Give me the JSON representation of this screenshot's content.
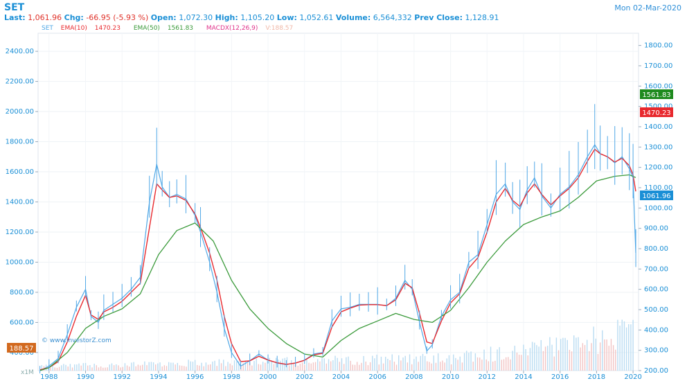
{
  "header": {
    "symbol": "SET",
    "date": "Mon 02-Mar-2020",
    "last_label": "Last:",
    "last": "1,061.96",
    "chg_label": "Chg:",
    "chg": "-66.95 (-5.93 %)",
    "open_label": "Open:",
    "open": "1,072.30",
    "high_label": "High:",
    "high": "1,105.20",
    "low_label": "Low:",
    "low": "1,052.61",
    "volume_label": "Volume:",
    "volume": "6,564,332",
    "prev_label": "Prev Close:",
    "prev": "1,128.91"
  },
  "legend": {
    "set": "SET",
    "ema10": "EMA(10)",
    "ema10_val": "1470.23",
    "ema50": "EMA(50)",
    "ema50_val": "1561.83",
    "macdx": "MACDX(12,26,9)",
    "v": "V:188.57"
  },
  "watermark": "© www.investorZ.com",
  "badges": {
    "left_value": "188.57",
    "ema50_value": "1561.83",
    "ema10_value": "1470.23",
    "last_value": "1061.96",
    "volume_unit": "x1M"
  },
  "colors": {
    "price": "#4fa7e6",
    "ema10": "#e8282d",
    "ema50": "#3a9a3a",
    "volume_up": "#b9dcf2",
    "volume_down": "#f2c4c4",
    "badge_left": "#d2691e",
    "badge_ema50": "#1e8a1e",
    "badge_ema10": "#e8282d",
    "badge_last": "#1a8fd6",
    "axis_text": "#1a8fd6"
  },
  "chart_data": {
    "type": "line",
    "title": "SET",
    "left_axis": {
      "ylim": [
        280,
        2520
      ],
      "ticks": [
        400,
        600,
        800,
        1000,
        1200,
        1400,
        1600,
        1800,
        2000,
        2200,
        2400
      ],
      "tick_labels": [
        "400.00",
        "600.00",
        "800.00",
        "1000.00",
        "1200.00",
        "1400.00",
        "1600.00",
        "1800.00",
        "2000.00",
        "2200.00",
        "2400.00"
      ]
    },
    "right_axis": {
      "ylim": [
        200,
        1860
      ],
      "ticks": [
        200,
        300,
        400,
        500,
        600,
        700,
        800,
        900,
        1000,
        1100,
        1200,
        1300,
        1400,
        1500,
        1600,
        1700,
        1800
      ],
      "tick_labels": [
        "200.00",
        "300.00",
        "400.00",
        "500.00",
        "600.00",
        "700.00",
        "800.00",
        "900.00",
        "1000.00",
        "1100.00",
        "1200.00",
        "1300.00",
        "1400.00",
        "1500.00",
        "1600.00",
        "1700.00",
        "1800.00"
      ]
    },
    "x_ticks": [
      "1988",
      "1990",
      "1992",
      "1994",
      "1996",
      "1998",
      "2000",
      "2002",
      "2004",
      "2006",
      "2008",
      "2010",
      "2012",
      "2014",
      "2016",
      "2018",
      "2020"
    ],
    "x_tick_values": [
      1988,
      1990,
      1992,
      1994,
      1996,
      1998,
      2000,
      2002,
      2004,
      2006,
      2008,
      2010,
      2012,
      2014,
      2016,
      2018,
      2020
    ],
    "grid": true,
    "series": [
      {
        "name": "SET",
        "x": [
          1987.5,
          1988,
          1988.5,
          1989,
          1989.5,
          1990,
          1990.3,
          1990.7,
          1991,
          1991.5,
          1992,
          1992.5,
          1993,
          1993.5,
          1993.9,
          1994.2,
          1994.6,
          1995,
          1995.5,
          1996,
          1996.3,
          1996.8,
          1997.2,
          1997.6,
          1998,
          1998.5,
          1999,
          1999.5,
          2000,
          2000.5,
          2001,
          2001.5,
          2002,
          2002.5,
          2003,
          2003.5,
          2004,
          2004.5,
          2005,
          2005.5,
          2006,
          2006.5,
          2007,
          2007.5,
          2007.9,
          2008.3,
          2008.7,
          2009,
          2009.5,
          2010,
          2010.5,
          2011,
          2011.5,
          2012,
          2012.5,
          2013,
          2013.4,
          2013.8,
          2014.2,
          2014.6,
          2015,
          2015.5,
          2016,
          2016.5,
          2017,
          2017.5,
          2017.9,
          2018.2,
          2018.6,
          2019,
          2019.4,
          2019.8,
          2020.0,
          2020.15
        ],
        "values": [
          280,
          310,
          360,
          520,
          700,
          820,
          640,
          600,
          680,
          720,
          760,
          820,
          900,
          1400,
          1650,
          1500,
          1430,
          1450,
          1420,
          1310,
          1200,
          1000,
          800,
          560,
          400,
          310,
          345,
          390,
          350,
          330,
          320,
          330,
          350,
          390,
          400,
          610,
          690,
          700,
          720,
          720,
          720,
          710,
          760,
          880,
          820,
          600,
          410,
          450,
          640,
          750,
          800,
          1000,
          1050,
          1250,
          1450,
          1520,
          1400,
          1350,
          1480,
          1560,
          1440,
          1360,
          1450,
          1500,
          1580,
          1700,
          1780,
          1720,
          1700,
          1660,
          1700,
          1620,
          1560,
          1062
        ]
      },
      {
        "name": "EMA(10)",
        "x": [
          1987.5,
          1988,
          1988.5,
          1989,
          1989.5,
          1990,
          1990.3,
          1990.7,
          1991,
          1991.5,
          1992,
          1992.5,
          1993,
          1993.5,
          1993.9,
          1994.2,
          1994.6,
          1995,
          1995.5,
          1996,
          1996.3,
          1996.8,
          1997.2,
          1997.6,
          1998,
          1998.5,
          1999,
          1999.5,
          2000,
          2000.5,
          2001,
          2001.5,
          2002,
          2002.5,
          2003,
          2003.5,
          2004,
          2004.5,
          2005,
          2005.5,
          2006,
          2006.5,
          2007,
          2007.5,
          2007.9,
          2008.3,
          2008.7,
          2009,
          2009.5,
          2010,
          2010.5,
          2011,
          2011.5,
          2012,
          2012.5,
          2013,
          2013.4,
          2013.8,
          2014.2,
          2014.6,
          2015,
          2015.5,
          2016,
          2016.5,
          2017,
          2017.5,
          2017.9,
          2018.2,
          2018.6,
          2019,
          2019.4,
          2019.8,
          2020.0,
          2020.15
        ],
        "values": [
          285,
          300,
          340,
          470,
          640,
          780,
          650,
          620,
          670,
          700,
          740,
          800,
          860,
          1230,
          1520,
          1480,
          1430,
          1440,
          1410,
          1320,
          1230,
          1060,
          880,
          640,
          460,
          340,
          345,
          375,
          350,
          332,
          322,
          330,
          348,
          385,
          395,
          570,
          670,
          695,
          715,
          718,
          718,
          712,
          750,
          860,
          830,
          660,
          470,
          460,
          610,
          730,
          790,
          960,
          1030,
          1200,
          1400,
          1490,
          1410,
          1370,
          1460,
          1520,
          1450,
          1380,
          1440,
          1490,
          1560,
          1670,
          1750,
          1720,
          1700,
          1665,
          1690,
          1640,
          1580,
          1470
        ]
      },
      {
        "name": "EMA(50)",
        "x": [
          1987.5,
          1988,
          1989,
          1990,
          1991,
          1992,
          1993,
          1994,
          1995,
          1996,
          1997,
          1998,
          1999,
          2000,
          2001,
          2002,
          2003,
          2004,
          2005,
          2006,
          2007,
          2008,
          2009,
          2010,
          2011,
          2012,
          2013,
          2014,
          2015,
          2016,
          2017,
          2018,
          2019,
          2019.8,
          2020.15
        ],
        "values": [
          280,
          300,
          400,
          560,
          640,
          690,
          790,
          1050,
          1210,
          1260,
          1140,
          880,
          690,
          560,
          460,
          390,
          370,
          480,
          560,
          610,
          660,
          620,
          600,
          680,
          830,
          1000,
          1140,
          1250,
          1300,
          1340,
          1430,
          1540,
          1570,
          1580,
          1562
        ]
      }
    ],
    "volume": {
      "unit": "x1M",
      "label": "V:188.57"
    }
  }
}
